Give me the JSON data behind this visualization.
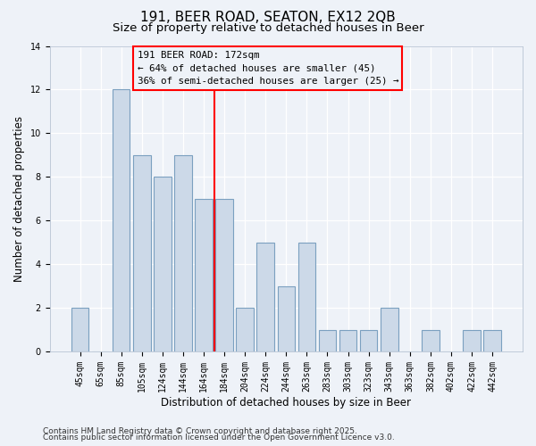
{
  "title": "191, BEER ROAD, SEATON, EX12 2QB",
  "subtitle": "Size of property relative to detached houses in Beer",
  "xlabel": "Distribution of detached houses by size in Beer",
  "ylabel": "Number of detached properties",
  "bar_color": "#ccd9e8",
  "bar_edge_color": "#7ba0c0",
  "categories": [
    "45sqm",
    "65sqm",
    "85sqm",
    "105sqm",
    "124sqm",
    "144sqm",
    "164sqm",
    "184sqm",
    "204sqm",
    "224sqm",
    "244sqm",
    "263sqm",
    "283sqm",
    "303sqm",
    "323sqm",
    "343sqm",
    "363sqm",
    "382sqm",
    "402sqm",
    "422sqm",
    "442sqm"
  ],
  "values": [
    2,
    0,
    12,
    9,
    8,
    9,
    7,
    7,
    2,
    5,
    3,
    5,
    1,
    1,
    1,
    2,
    0,
    1,
    0,
    1,
    1
  ],
  "ylim": [
    0,
    14
  ],
  "yticks": [
    0,
    2,
    4,
    6,
    8,
    10,
    12,
    14
  ],
  "property_line_x": 6.5,
  "annotation_title": "191 BEER ROAD: 172sqm",
  "annotation_line1": "← 64% of detached houses are smaller (45)",
  "annotation_line2": "36% of semi-detached houses are larger (25) →",
  "footer1": "Contains HM Land Registry data © Crown copyright and database right 2025.",
  "footer2": "Contains public sector information licensed under the Open Government Licence v3.0.",
  "background_color": "#eef2f8",
  "grid_color": "#ffffff",
  "title_fontsize": 11,
  "subtitle_fontsize": 9.5,
  "tick_fontsize": 7,
  "axis_label_fontsize": 8.5,
  "footer_fontsize": 6.5
}
